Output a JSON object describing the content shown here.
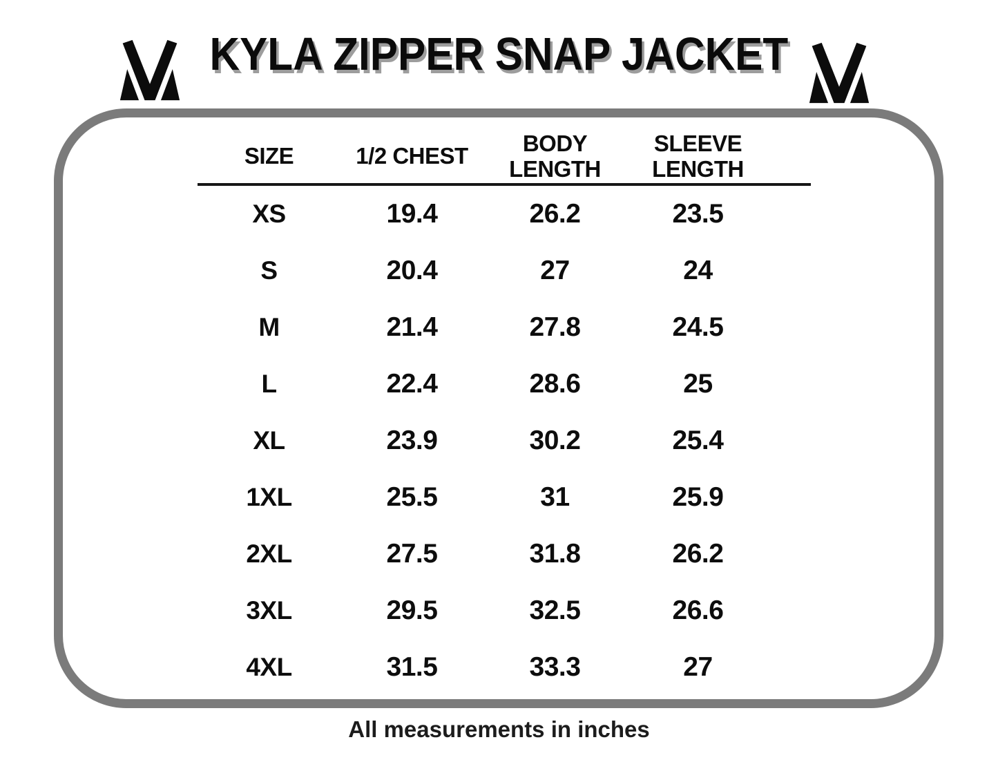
{
  "header": {
    "title": "KYLA ZIPPER SNAP JACKET",
    "logo_icon": "m-monogram",
    "title_color": "#0b0b0b",
    "title_shadow_color": "#9d9d9d"
  },
  "frame": {
    "border_color": "#7b7b7b"
  },
  "chart_data": {
    "type": "table",
    "title": "KYLA ZIPPER SNAP JACKET",
    "columns": [
      "SIZE",
      "1/2 CHEST",
      "BODY LENGTH",
      "SLEEVE LENGTH"
    ],
    "rows": [
      [
        "XS",
        "19.4",
        "26.2",
        "23.5"
      ],
      [
        "S",
        "20.4",
        "27",
        "24"
      ],
      [
        "M",
        "21.4",
        "27.8",
        "24.5"
      ],
      [
        "L",
        "22.4",
        "28.6",
        "25"
      ],
      [
        "XL",
        "23.9",
        "30.2",
        "25.4"
      ],
      [
        "1XL",
        "25.5",
        "31",
        "25.9"
      ],
      [
        "2XL",
        "27.5",
        "31.8",
        "26.2"
      ],
      [
        "3XL",
        "29.5",
        "32.5",
        "26.6"
      ],
      [
        "4XL",
        "31.5",
        "33.3",
        "27"
      ]
    ],
    "units_note": "All measurements in inches",
    "layout": {
      "grid": "off",
      "header_divider": "solid black line under column headers"
    }
  }
}
